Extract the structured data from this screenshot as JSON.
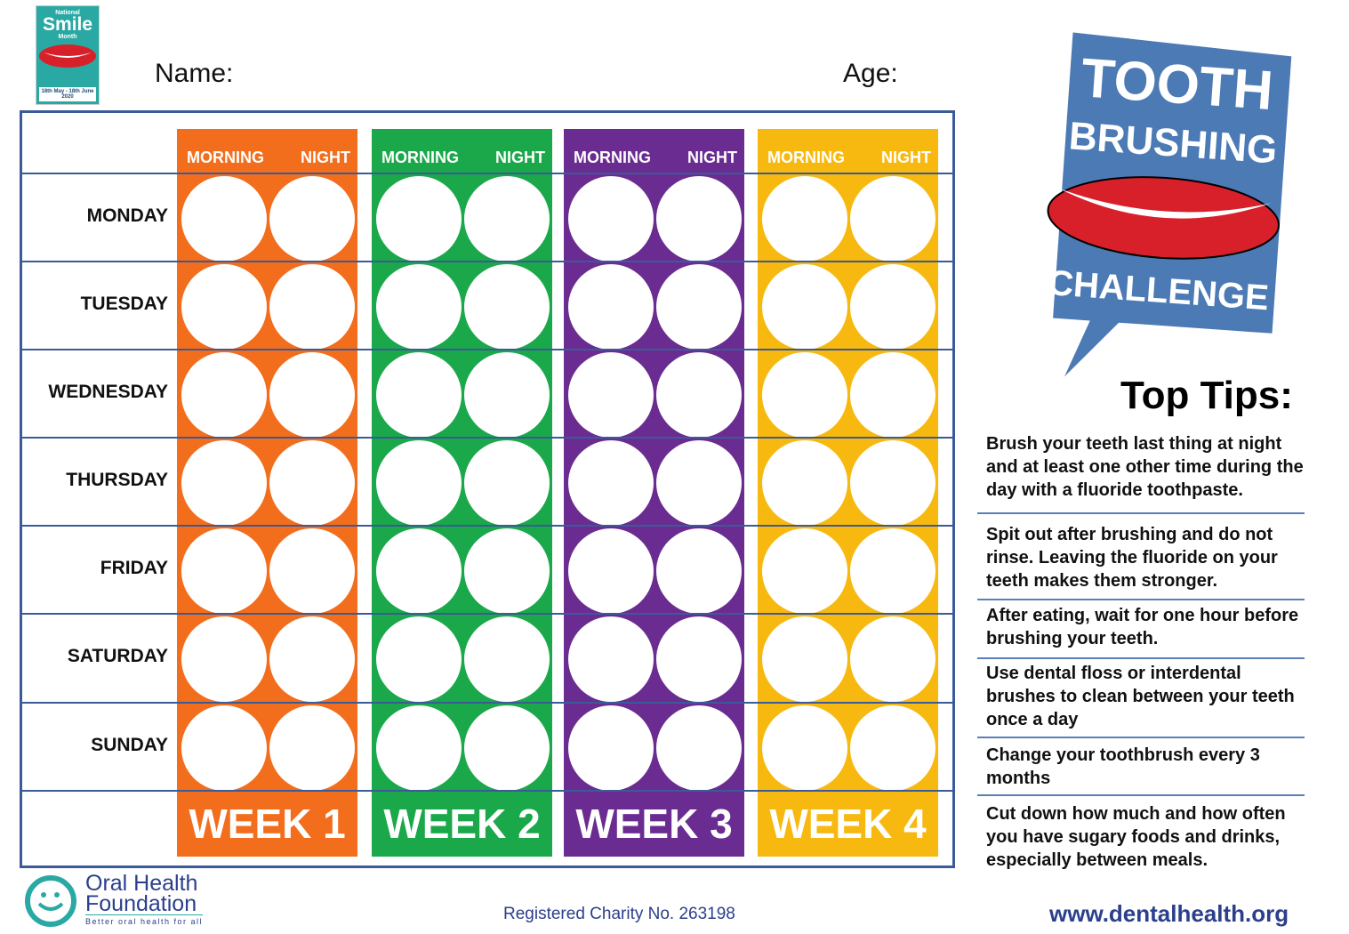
{
  "logo": {
    "line1": "National",
    "line2": "Smile",
    "line3": "Month",
    "dates": "18th May - 18th June 2020"
  },
  "form": {
    "name_label": "Name:",
    "age_label": "Age:"
  },
  "headers": {
    "morning": "MORNING",
    "night": "NIGHT"
  },
  "days": [
    "MONDAY",
    "TUESDAY",
    "WEDNESDAY",
    "THURSDAY",
    "FRIDAY",
    "SATURDAY",
    "SUNDAY"
  ],
  "weeks": [
    {
      "label": "WEEK 1",
      "color": "#f26d1c"
    },
    {
      "label": "WEEK 2",
      "color": "#1aa84a"
    },
    {
      "label": "WEEK 3",
      "color": "#6a2c91"
    },
    {
      "label": "WEEK 4",
      "color": "#f7b90f"
    }
  ],
  "badge": {
    "line1": "TOOTH",
    "line2": "BRUSHING",
    "line3": "CHALLENGE",
    "color": "#4b7ab5"
  },
  "tips": {
    "title": "Top Tips:",
    "items": [
      "Brush your teeth last thing at night and at least one other time during the day with a fluoride toothpaste.",
      "Spit out after brushing and do not rinse. Leaving the fluoride on your teeth makes them stronger.",
      "After eating, wait for one hour before brushing your teeth.",
      "Use dental floss or interdental brushes to clean between your teeth once a day",
      "Change your toothbrush every 3 months",
      "Cut down how much and how often you have sugary foods and drinks, especially between meals."
    ]
  },
  "footer": {
    "org_line1": "Oral Health",
    "org_line2": "Foundation",
    "org_tagline": "Better oral health for all",
    "charity": "Registered Charity No. 263198",
    "website": "www.dentalhealth.org"
  }
}
